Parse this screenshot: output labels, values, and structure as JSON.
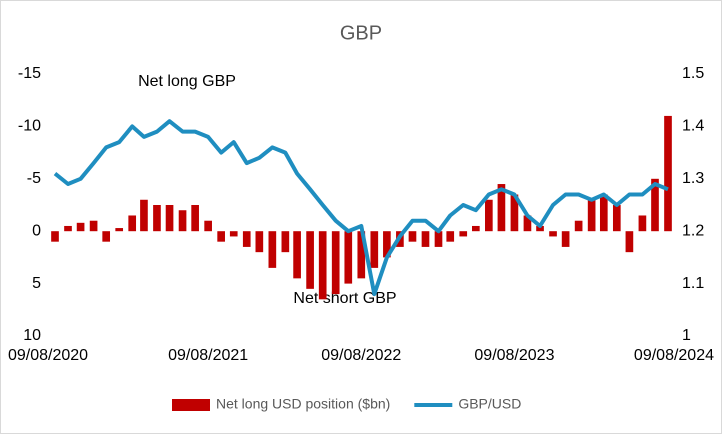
{
  "chart_data": {
    "type": "combo",
    "title": "GBP",
    "x": [
      "09/08/2020",
      "09/09/2020",
      "09/10/2020",
      "09/11/2020",
      "09/12/2020",
      "09/01/2021",
      "09/02/2021",
      "09/03/2021",
      "09/04/2021",
      "09/05/2021",
      "09/06/2021",
      "09/07/2021",
      "09/08/2021",
      "09/09/2021",
      "09/10/2021",
      "09/11/2021",
      "09/12/2021",
      "09/01/2022",
      "09/02/2022",
      "09/03/2022",
      "09/04/2022",
      "09/05/2022",
      "09/06/2022",
      "09/07/2022",
      "09/08/2022",
      "09/09/2022",
      "09/10/2022",
      "09/11/2022",
      "09/12/2022",
      "09/01/2023",
      "09/02/2023",
      "09/03/2023",
      "09/04/2023",
      "09/05/2023",
      "09/06/2023",
      "09/07/2023",
      "09/08/2023",
      "09/09/2023",
      "09/10/2023",
      "09/11/2023",
      "09/12/2023",
      "09/01/2024",
      "09/02/2024",
      "09/03/2024",
      "09/04/2024",
      "09/05/2024",
      "09/06/2024",
      "09/07/2024",
      "09/08/2024"
    ],
    "series": [
      {
        "name": "Net long USD position ($bn)",
        "type": "bar",
        "color": "#c00000",
        "values": [
          1,
          -0.5,
          -0.8,
          -1,
          1,
          -0.3,
          -1.5,
          -3,
          -2.5,
          -2.5,
          -2,
          -2.5,
          -1,
          1,
          0.5,
          1.5,
          2,
          3.5,
          2,
          4.5,
          5.5,
          6.5,
          6,
          5,
          4.5,
          3.5,
          2.5,
          1.5,
          1,
          1.5,
          1.5,
          1,
          0.5,
          -0.5,
          -3,
          -4.5,
          -3.5,
          -1.5,
          -0.5,
          0.5,
          1.5,
          -1,
          -3,
          -3.5,
          -2.5,
          2,
          -1.5,
          -5,
          -11
        ]
      },
      {
        "name": "GBP/USD",
        "type": "line",
        "axis": "y2",
        "color": "#1f8ec0",
        "values": [
          1.31,
          1.29,
          1.3,
          1.33,
          1.36,
          1.37,
          1.4,
          1.38,
          1.39,
          1.41,
          1.39,
          1.39,
          1.38,
          1.35,
          1.37,
          1.33,
          1.34,
          1.36,
          1.35,
          1.31,
          1.28,
          1.25,
          1.22,
          1.2,
          1.21,
          1.08,
          1.15,
          1.19,
          1.22,
          1.22,
          1.2,
          1.23,
          1.25,
          1.24,
          1.27,
          1.28,
          1.27,
          1.23,
          1.21,
          1.25,
          1.27,
          1.27,
          1.26,
          1.27,
          1.25,
          1.27,
          1.27,
          1.29,
          1.28
        ]
      }
    ],
    "xticks": [
      "09/08/2020",
      "09/08/2021",
      "09/08/2022",
      "09/08/2023",
      "09/08/2024"
    ],
    "ylim": [
      -15,
      10
    ],
    "yticks": [
      -15,
      -10,
      -5,
      0,
      5,
      10
    ],
    "y_inverted": true,
    "y2lim": [
      1,
      1.5
    ],
    "y2ticks": [
      1,
      1.1,
      1.2,
      1.3,
      1.4,
      1.5
    ],
    "annotations": [
      "Net long GBP",
      "Net short GBP"
    ],
    "legend": "bottom"
  }
}
